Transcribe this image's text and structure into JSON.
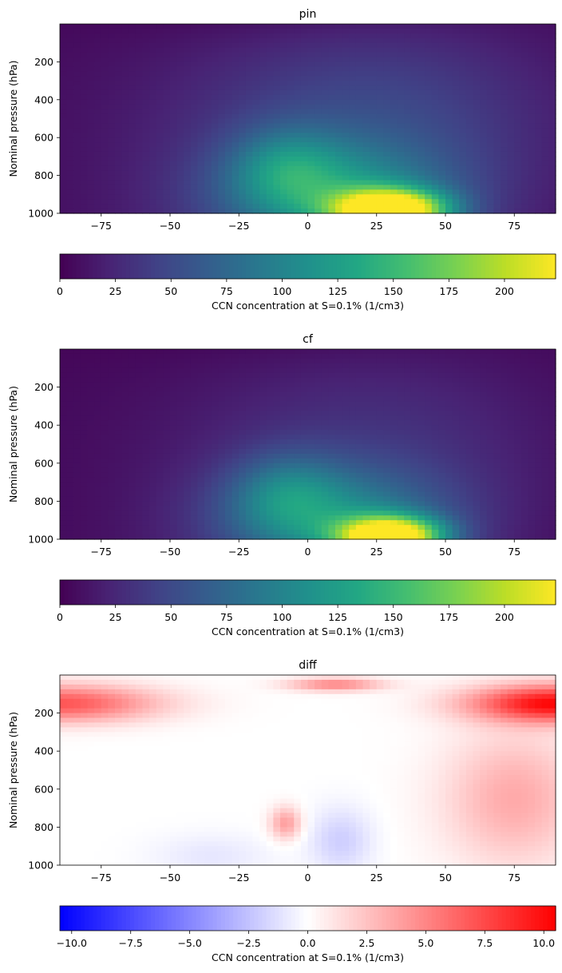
{
  "chart_data": [
    {
      "type": "heatmap",
      "title": "pin",
      "ylabel": "Nominal pressure (hPa)",
      "x_range": [
        -90,
        90
      ],
      "y_range": [
        1000,
        0
      ],
      "x_ticks": [
        -75,
        -50,
        -25,
        0,
        25,
        50,
        75
      ],
      "y_ticks": [
        200,
        400,
        600,
        800,
        1000
      ],
      "colormap": "viridis",
      "colorbar": {
        "label": "CCN concentration at S=0.1% (1/cm3)",
        "range": [
          0,
          223
        ],
        "ticks": [
          0,
          25,
          50,
          75,
          100,
          125,
          150,
          175,
          200
        ]
      },
      "features": [
        {
          "lat": 30,
          "p": 985,
          "value": 220,
          "sx": 14,
          "sp": 75
        },
        {
          "lat": 10,
          "p": 910,
          "value": 80,
          "sx": 30,
          "sp": 200
        },
        {
          "lat": -8,
          "p": 760,
          "value": 50,
          "sx": 14,
          "sp": 150
        },
        {
          "lat": 30,
          "p": 500,
          "value": 28,
          "sx": 45,
          "sp": 400
        }
      ]
    },
    {
      "type": "heatmap",
      "title": "cf",
      "ylabel": "Nominal pressure (hPa)",
      "x_range": [
        -90,
        90
      ],
      "y_range": [
        1000,
        0
      ],
      "x_ticks": [
        -75,
        -50,
        -25,
        0,
        25,
        50,
        75
      ],
      "y_ticks": [
        200,
        400,
        600,
        800,
        1000
      ],
      "colormap": "viridis",
      "colorbar": {
        "label": "CCN concentration at S=0.1% (1/cm3)",
        "range": [
          0,
          223
        ],
        "ticks": [
          0,
          25,
          50,
          75,
          100,
          125,
          150,
          175,
          200
        ]
      },
      "features": [
        {
          "lat": 30,
          "p": 985,
          "value": 215,
          "sx": 13,
          "sp": 72
        },
        {
          "lat": 10,
          "p": 910,
          "value": 80,
          "sx": 30,
          "sp": 200
        },
        {
          "lat": -8,
          "p": 760,
          "value": 48,
          "sx": 14,
          "sp": 150
        },
        {
          "lat": 30,
          "p": 500,
          "value": 18,
          "sx": 45,
          "sp": 400
        }
      ]
    },
    {
      "type": "heatmap",
      "title": "diff",
      "ylabel": "Nominal pressure (hPa)",
      "x_range": [
        -90,
        90
      ],
      "y_range": [
        1000,
        0
      ],
      "x_ticks": [
        -75,
        -50,
        -25,
        0,
        25,
        50,
        75
      ],
      "y_ticks": [
        200,
        400,
        600,
        800,
        1000
      ],
      "colormap": "bwr",
      "colorbar": {
        "label": "CCN concentration at S=0.1% (1/cm3)",
        "range": [
          -10.5,
          10.5
        ],
        "ticks": [
          -10.0,
          -7.5,
          -5.0,
          -2.5,
          0.0,
          2.5,
          5.0,
          7.5,
          10.0
        ]
      },
      "features": [
        {
          "lat": 90,
          "p": 150,
          "value": 10,
          "sx": 22,
          "sp": 70
        },
        {
          "lat": -90,
          "p": 150,
          "value": 7,
          "sx": 25,
          "sp": 70
        },
        {
          "lat": 10,
          "p": 50,
          "value": 5,
          "sx": 12,
          "sp": 25
        },
        {
          "lat": 75,
          "p": 650,
          "value": 3.5,
          "sx": 18,
          "sp": 250
        },
        {
          "lat": -8,
          "p": 780,
          "value": 4,
          "sx": 4,
          "sp": 60
        },
        {
          "lat": 12,
          "p": 870,
          "value": -2,
          "sx": 8,
          "sp": 120
        },
        {
          "lat": -35,
          "p": 950,
          "value": -1,
          "sx": 15,
          "sp": 80
        }
      ]
    }
  ]
}
